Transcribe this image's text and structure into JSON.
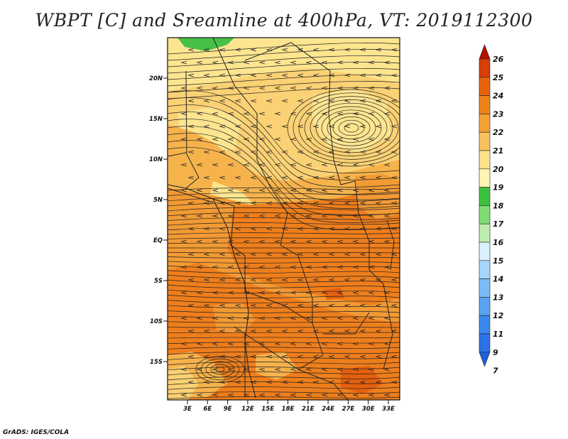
{
  "title": "WBPT [C] and Sreamline at 400hPa, VT: 2019112300",
  "credit": "GrADS: IGES/COLA",
  "lat_labels": [
    "20N",
    "15N",
    "10N",
    "5N",
    "EQ",
    "5S",
    "10S",
    "15S"
  ],
  "lon_labels": [
    "3E",
    "6E",
    "9E",
    "12E",
    "15E",
    "18E",
    "21E",
    "24E",
    "27E",
    "30E",
    "33E"
  ],
  "colorbar": {
    "labels": [
      "7",
      "9",
      "11",
      "12",
      "13",
      "14",
      "15",
      "16",
      "17",
      "18",
      "19",
      "20",
      "21",
      "22",
      "23",
      "24",
      "25",
      "26"
    ],
    "colors": [
      "#1e5fdc",
      "#2b73e8",
      "#3a88ee",
      "#5aa2f2",
      "#7cbcf6",
      "#a7d6fa",
      "#dcf2fe",
      "#bdeeb0",
      "#7edc74",
      "#3cc13c",
      "#fff6b4",
      "#fde28e",
      "#f8c260",
      "#f3a234",
      "#ee8418",
      "#e8640c",
      "#d83e06",
      "#b81000"
    ]
  },
  "field_colors": {
    "c19": "#fde590",
    "c20": "#fad174",
    "c21": "#f6b34c",
    "c22": "#f29a34",
    "c23": "#ee7e1c",
    "c24": "#e5600e",
    "c18": "#48c048"
  }
}
